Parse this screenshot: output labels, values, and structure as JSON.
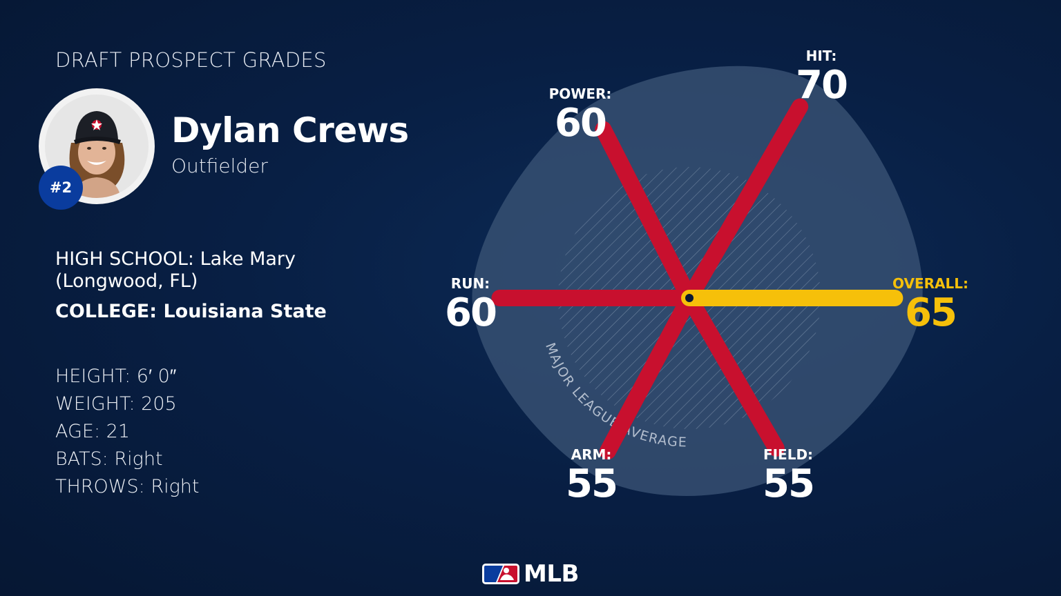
{
  "header": {
    "title": "DRAFT PROSPECT GRADES"
  },
  "player": {
    "name": "Dylan Crews",
    "position": "Outfielder",
    "rank": "#2"
  },
  "school": {
    "high_school_label": "HIGH SCHOOL:",
    "high_school_value": "Lake Mary (Longwood, FL)",
    "college_label": "COLLEGE:",
    "college_value": "Louisiana State"
  },
  "stats": [
    {
      "label": "HEIGHT:",
      "value": "6′ 0″"
    },
    {
      "label": "WEIGHT:",
      "value": "205"
    },
    {
      "label": "AGE:",
      "value": "21"
    },
    {
      "label": "BATS:",
      "value": "Right"
    },
    {
      "label": "THROWS:",
      "value": "Right"
    }
  ],
  "chart_data": {
    "type": "radar",
    "scale_max": 80,
    "average_ring_label": "MAJOR LEAGUE AVERAGE",
    "axes": [
      {
        "label": "HIT:",
        "value": 70,
        "highlight": false
      },
      {
        "label": "POWER:",
        "value": 60,
        "highlight": false
      },
      {
        "label": "RUN:",
        "value": 60,
        "highlight": false
      },
      {
        "label": "ARM:",
        "value": 55,
        "highlight": false
      },
      {
        "label": "FIELD:",
        "value": 55,
        "highlight": false
      },
      {
        "label": "OVERALL:",
        "value": 65,
        "highlight": true
      }
    ],
    "colors": {
      "spoke": "#c8102e",
      "overall": "#f6c00a",
      "shape": "#3c5577",
      "hatch": "#9fb0c6"
    }
  },
  "footer": {
    "logo_text": "MLB",
    "logo_icon": "mlb-logo-icon"
  }
}
